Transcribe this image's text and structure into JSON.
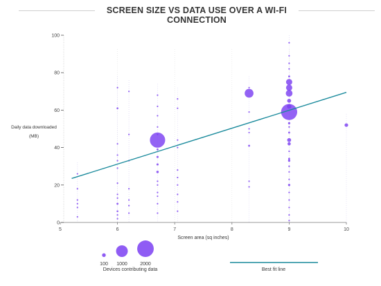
{
  "chart_data": {
    "type": "scatter",
    "title": "SCREEN SIZE VS DATA USE OVER A WI-FI CONNECTION",
    "xlabel": "Screen area (sq inches)",
    "ylabel": "Daily data downloaded (MB)",
    "xlim": [
      5,
      10
    ],
    "ylim": [
      0,
      100
    ],
    "x_ticks": [
      "5",
      "6",
      "7",
      "8",
      "9",
      "10"
    ],
    "y_ticks": [
      "0",
      "20",
      "40",
      "60",
      "80",
      "100"
    ],
    "point_color": "#7b3ff2",
    "fit_line_color": "#1a8a9c",
    "points": [
      {
        "x": 5.3,
        "y": 12,
        "n": 20
      },
      {
        "x": 5.3,
        "y": 10,
        "n": 15
      },
      {
        "x": 5.3,
        "y": 8,
        "n": 8
      },
      {
        "x": 5.3,
        "y": 18,
        "n": 5
      },
      {
        "x": 5.3,
        "y": 3,
        "n": 5
      },
      {
        "x": 5.3,
        "y": 26,
        "n": 4
      },
      {
        "x": 6.0,
        "y": 72,
        "n": 10
      },
      {
        "x": 6.0,
        "y": 61,
        "n": 25
      },
      {
        "x": 6.0,
        "y": 42,
        "n": 10
      },
      {
        "x": 6.0,
        "y": 36,
        "n": 8
      },
      {
        "x": 6.0,
        "y": 33,
        "n": 12
      },
      {
        "x": 6.0,
        "y": 29,
        "n": 15
      },
      {
        "x": 6.0,
        "y": 21,
        "n": 10
      },
      {
        "x": 6.0,
        "y": 15,
        "n": 8
      },
      {
        "x": 6.0,
        "y": 10,
        "n": 30
      },
      {
        "x": 6.0,
        "y": 6,
        "n": 25
      },
      {
        "x": 6.0,
        "y": 4,
        "n": 10
      },
      {
        "x": 6.0,
        "y": 2,
        "n": 8
      },
      {
        "x": 6.0,
        "y": 13,
        "n": 6
      },
      {
        "x": 6.2,
        "y": 70,
        "n": 6
      },
      {
        "x": 6.2,
        "y": 47,
        "n": 6
      },
      {
        "x": 6.2,
        "y": 33,
        "n": 8
      },
      {
        "x": 6.2,
        "y": 18,
        "n": 6
      },
      {
        "x": 6.2,
        "y": 9,
        "n": 8
      },
      {
        "x": 6.2,
        "y": 5,
        "n": 10
      },
      {
        "x": 6.2,
        "y": 12,
        "n": 5
      },
      {
        "x": 6.7,
        "y": 62,
        "n": 8
      },
      {
        "x": 6.7,
        "y": 57,
        "n": 8
      },
      {
        "x": 6.7,
        "y": 51,
        "n": 10
      },
      {
        "x": 6.7,
        "y": 47,
        "n": 12
      },
      {
        "x": 6.7,
        "y": 44,
        "n": 1800
      },
      {
        "x": 6.7,
        "y": 39,
        "n": 30
      },
      {
        "x": 6.7,
        "y": 35,
        "n": 35
      },
      {
        "x": 6.7,
        "y": 31,
        "n": 35
      },
      {
        "x": 6.7,
        "y": 27,
        "n": 45
      },
      {
        "x": 6.7,
        "y": 22,
        "n": 20
      },
      {
        "x": 6.7,
        "y": 20,
        "n": 15
      },
      {
        "x": 6.7,
        "y": 16,
        "n": 8
      },
      {
        "x": 6.7,
        "y": 10,
        "n": 6
      },
      {
        "x": 6.7,
        "y": 5,
        "n": 5
      },
      {
        "x": 6.7,
        "y": 68,
        "n": 4
      },
      {
        "x": 6.7,
        "y": 14,
        "n": 5
      },
      {
        "x": 7.05,
        "y": 61,
        "n": 8
      },
      {
        "x": 7.05,
        "y": 44,
        "n": 10
      },
      {
        "x": 7.05,
        "y": 40,
        "n": 5
      },
      {
        "x": 7.05,
        "y": 28,
        "n": 8
      },
      {
        "x": 7.05,
        "y": 24,
        "n": 8
      },
      {
        "x": 7.05,
        "y": 20,
        "n": 12
      },
      {
        "x": 7.05,
        "y": 15,
        "n": 10
      },
      {
        "x": 7.05,
        "y": 11,
        "n": 8
      },
      {
        "x": 7.05,
        "y": 6,
        "n": 5
      },
      {
        "x": 7.05,
        "y": 66,
        "n": 4
      },
      {
        "x": 8.3,
        "y": 72,
        "n": 5
      },
      {
        "x": 8.3,
        "y": 69,
        "n": 600
      },
      {
        "x": 8.3,
        "y": 59,
        "n": 8
      },
      {
        "x": 8.3,
        "y": 50,
        "n": 10
      },
      {
        "x": 8.3,
        "y": 48,
        "n": 8
      },
      {
        "x": 8.3,
        "y": 41,
        "n": 30
      },
      {
        "x": 8.3,
        "y": 22,
        "n": 5
      },
      {
        "x": 8.3,
        "y": 19,
        "n": 5
      },
      {
        "x": 9.0,
        "y": 96,
        "n": 10
      },
      {
        "x": 9.0,
        "y": 89,
        "n": 8
      },
      {
        "x": 9.0,
        "y": 85,
        "n": 8
      },
      {
        "x": 9.0,
        "y": 82,
        "n": 8
      },
      {
        "x": 9.0,
        "y": 78,
        "n": 30
      },
      {
        "x": 9.0,
        "y": 75,
        "n": 300
      },
      {
        "x": 9.0,
        "y": 72,
        "n": 300
      },
      {
        "x": 9.0,
        "y": 69,
        "n": 350
      },
      {
        "x": 9.0,
        "y": 65,
        "n": 120
      },
      {
        "x": 9.0,
        "y": 62,
        "n": 150
      },
      {
        "x": 9.0,
        "y": 59,
        "n": 2000
      },
      {
        "x": 9.0,
        "y": 53,
        "n": 40
      },
      {
        "x": 9.0,
        "y": 51,
        "n": 20
      },
      {
        "x": 9.0,
        "y": 48,
        "n": 30
      },
      {
        "x": 9.0,
        "y": 44,
        "n": 120
      },
      {
        "x": 9.0,
        "y": 42,
        "n": 80
      },
      {
        "x": 9.0,
        "y": 38,
        "n": 20
      },
      {
        "x": 9.0,
        "y": 34,
        "n": 30
      },
      {
        "x": 9.0,
        "y": 33,
        "n": 40
      },
      {
        "x": 9.0,
        "y": 30,
        "n": 20
      },
      {
        "x": 9.0,
        "y": 27,
        "n": 15
      },
      {
        "x": 9.0,
        "y": 23,
        "n": 15
      },
      {
        "x": 9.0,
        "y": 20,
        "n": 40
      },
      {
        "x": 9.0,
        "y": 16,
        "n": 15
      },
      {
        "x": 9.0,
        "y": 12,
        "n": 10
      },
      {
        "x": 9.0,
        "y": 8,
        "n": 10
      },
      {
        "x": 9.0,
        "y": 4,
        "n": 8
      },
      {
        "x": 9.0,
        "y": 1,
        "n": 6
      },
      {
        "x": 10.0,
        "y": 52,
        "n": 100
      }
    ],
    "fit_line": {
      "x": [
        5.2,
        10.0
      ],
      "y": [
        23.5,
        69.5
      ]
    },
    "legend": {
      "size_label": "Devices contributing data",
      "sizes": [
        {
          "label": "100",
          "n": 100
        },
        {
          "label": "1000",
          "n": 1000
        },
        {
          "label": "2000",
          "n": 2000
        }
      ],
      "line_label": "Best fit line"
    }
  }
}
